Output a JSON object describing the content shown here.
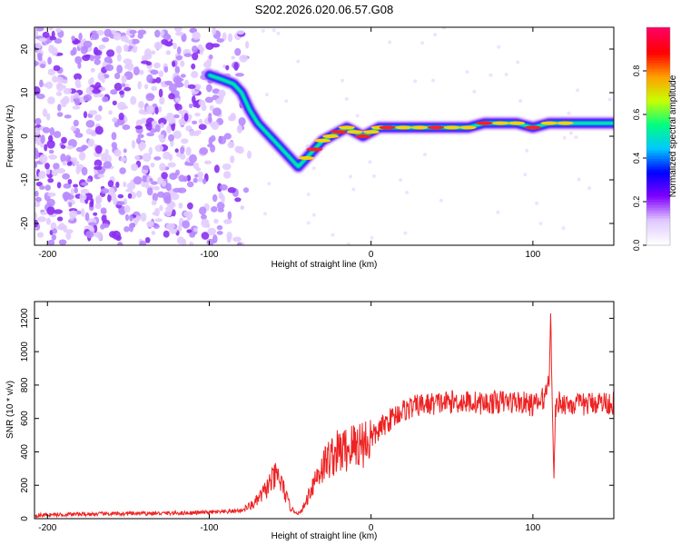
{
  "figure_title": "S202.2026.020.06.57.G08",
  "chart_data": [
    {
      "type": "heatmap",
      "title": "S202.2026.020.06.57.G08",
      "xlabel": "Height of straight line (km)",
      "ylabel": "Frequency (Hz)",
      "xlim": [
        -208,
        150
      ],
      "ylim": [
        -25,
        25
      ],
      "xticks": [
        -200,
        -100,
        0,
        100
      ],
      "yticks": [
        -20,
        -10,
        0,
        10,
        20
      ],
      "colorbar": {
        "label": "Normalized spectral amplitude",
        "range": [
          0,
          1
        ],
        "ticks": [
          0.0,
          0.2,
          0.4,
          0.6,
          0.8
        ],
        "tick_labels": [
          "0.0",
          "0.2",
          "0.4",
          "0.6",
          "0.8"
        ],
        "colors": [
          "#ffffff",
          "#e0c8ff",
          "#8000ff",
          "#0000ff",
          "#00c8ff",
          "#00ff80",
          "#c8ff00",
          "#ffa000",
          "#ff0000",
          "#ff0060"
        ]
      },
      "ridge": {
        "x": [
          -100,
          -92,
          -85,
          -80,
          -75,
          -70,
          -65,
          -60,
          -55,
          -50,
          -45,
          -40,
          -35,
          -30,
          -25,
          -20,
          -15,
          -10,
          -5,
          0,
          5,
          10,
          20,
          30,
          40,
          50,
          60,
          70,
          80,
          90,
          100,
          110,
          120,
          130,
          140,
          150
        ],
        "y": [
          14,
          13,
          12,
          10,
          6,
          3,
          1,
          -1,
          -3,
          -5,
          -7,
          -5,
          -3,
          -1,
          0,
          1,
          2,
          1,
          0,
          1,
          2,
          2,
          2,
          2,
          2,
          2,
          2,
          3,
          3,
          3,
          2,
          3,
          3,
          3,
          3,
          3
        ],
        "peak_amplitude_range_km": [
          -40,
          120
        ]
      }
    },
    {
      "type": "line",
      "xlabel": "Height of straight line (km)",
      "ylabel": "SNR (10 * v/v)",
      "xlim": [
        -208,
        150
      ],
      "ylim": [
        0,
        1300
      ],
      "xticks": [
        -200,
        -100,
        0,
        100
      ],
      "yticks": [
        0,
        200,
        400,
        600,
        800,
        1000,
        1200
      ],
      "series": [
        {
          "name": "SNR",
          "color": "#ee2222",
          "x": [
            -208,
            -190,
            -170,
            -150,
            -130,
            -110,
            -100,
            -90,
            -80,
            -72,
            -66,
            -62,
            -58,
            -55,
            -52,
            -50,
            -47,
            -44,
            -41,
            -38,
            -35,
            -32,
            -30,
            -28,
            -25,
            -22,
            -20,
            -16,
            -12,
            -8,
            -4,
            0,
            5,
            10,
            15,
            20,
            30,
            40,
            50,
            60,
            70,
            80,
            90,
            100,
            105,
            108,
            110,
            111,
            112,
            113,
            114,
            116,
            120,
            130,
            140,
            150
          ],
          "y": [
            20,
            25,
            28,
            30,
            32,
            35,
            38,
            40,
            50,
            90,
            160,
            220,
            260,
            200,
            120,
            70,
            40,
            30,
            80,
            160,
            230,
            280,
            310,
            340,
            370,
            390,
            400,
            410,
            430,
            450,
            460,
            480,
            530,
            580,
            620,
            650,
            680,
            690,
            700,
            700,
            690,
            700,
            700,
            680,
            700,
            750,
            850,
            1300,
            600,
            300,
            650,
            700,
            690,
            680,
            700,
            690
          ]
        }
      ]
    }
  ]
}
